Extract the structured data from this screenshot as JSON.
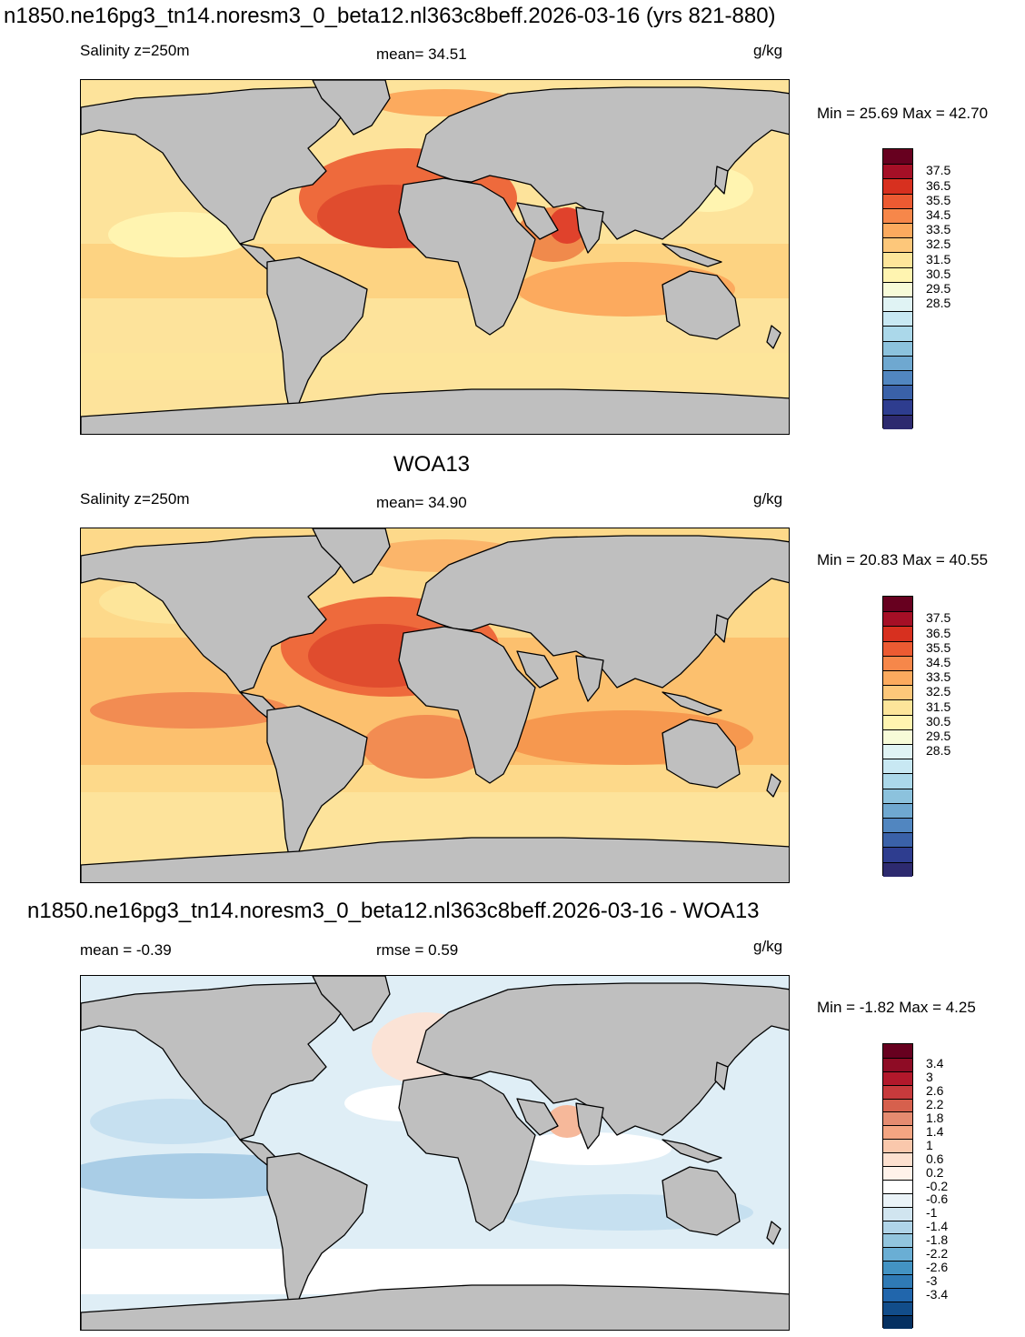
{
  "panels": [
    {
      "title": "n1850.ne16pg3_tn14.noresm3_0_beta12.nl363c8beff.2026-03-16 (yrs 821-880)",
      "left_label": "Salinity z=250m",
      "center_label": "mean=  34.51",
      "units": "g/kg",
      "minmax": "Min =  25.69 Max =  42.70"
    },
    {
      "title": "WOA13",
      "left_label": "Salinity z=250m",
      "center_label": "mean=  34.90",
      "units": "g/kg",
      "minmax": "Min =  20.83 Max =  40.55"
    },
    {
      "title": "n1850.ne16pg3_tn14.noresm3_0_beta12.nl363c8beff.2026-03-16 - WOA13",
      "left_label": "mean =  -0.39",
      "center_label": "rmse =   0.59",
      "units": "g/kg",
      "minmax": "Min =  -1.82 Max =   4.25"
    }
  ],
  "colorbar_abs": {
    "labels": [
      "37.5",
      "36.5",
      "35.5",
      "34.5",
      "33.5",
      "32.5",
      "31.5",
      "30.5",
      "29.5",
      "28.5"
    ],
    "colors": [
      "#67001f",
      "#a50f26",
      "#d7301f",
      "#ec5a32",
      "#f6874a",
      "#fcaa5e",
      "#fdc77a",
      "#fde59a",
      "#fff4b0",
      "#f7fbd8",
      "#e0f3f4",
      "#c8e8f3",
      "#abd8ea",
      "#8cc2dd",
      "#6fa8d0",
      "#5186c0",
      "#3a61a8",
      "#2e3d8f",
      "#2d2a6f"
    ]
  },
  "colorbar_diff": {
    "labels": [
      "3.4",
      "3",
      "2.6",
      "2.2",
      "1.8",
      "1.4",
      "1",
      "0.6",
      "0.2",
      "-0.2",
      "-0.6",
      "-1",
      "-1.4",
      "-1.8",
      "-2.2",
      "-2.6",
      "-3",
      "-3.4"
    ],
    "colors": [
      "#67001f",
      "#8e0c25",
      "#b2182b",
      "#c73a3c",
      "#d6604d",
      "#e58b70",
      "#f4a582",
      "#fac8ac",
      "#fde0cf",
      "#fff2ea",
      "#ffffff",
      "#eaf3f8",
      "#d1e5f0",
      "#b0d4e8",
      "#92c5de",
      "#6aaed4",
      "#4393c3",
      "#2f7ab5",
      "#2166ac",
      "#124d8a",
      "#053061"
    ]
  },
  "colors": {
    "land": "#bfbfbf",
    "coast": "#000000",
    "ocean_model": "#fdd98a",
    "ocean_woa": "#fcc67a",
    "ocean_diff": "#dfeef6"
  }
}
